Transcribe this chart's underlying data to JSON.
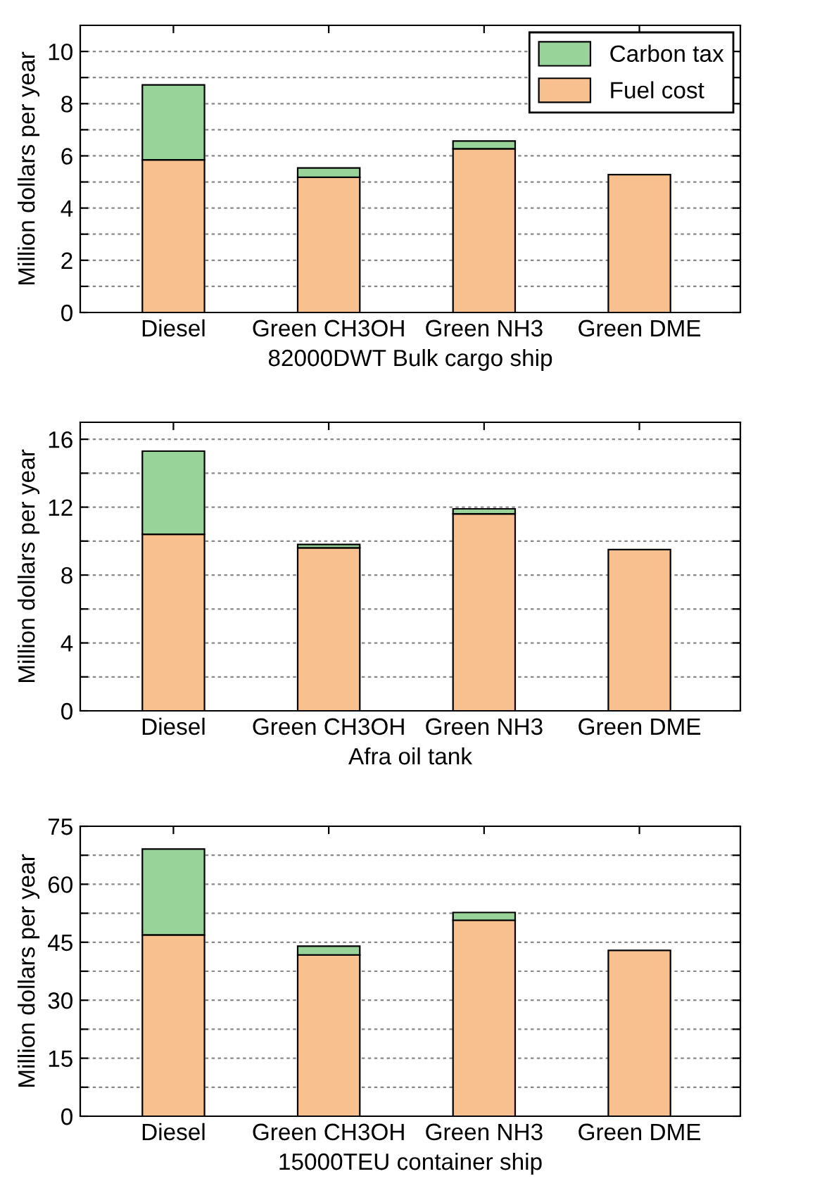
{
  "chart_data": [
    {
      "type": "bar",
      "stacked": true,
      "xlabel": "82000DWT Bulk cargo ship",
      "ylabel": "Million dollars per year",
      "categories": [
        "Diesel",
        "Green CH3OH",
        "Green NH3",
        "Green DME"
      ],
      "series": [
        {
          "name": "Fuel cost",
          "color": "#f9c08f",
          "values": [
            5.85,
            5.18,
            6.27,
            5.28
          ]
        },
        {
          "name": "Carbon tax",
          "color": "#98d49a",
          "values": [
            2.87,
            0.36,
            0.3,
            null
          ]
        }
      ],
      "ylim": [
        0,
        11
      ],
      "yticks": [
        0,
        {
          "value": 1,
          "label": null
        },
        2,
        {
          "value": 3,
          "label": null
        },
        4,
        {
          "value": 5,
          "label": null
        },
        6,
        {
          "value": 7,
          "label": null
        },
        8,
        {
          "value": 9,
          "label": null
        },
        10
      ],
      "grid": "y",
      "legend": "top right"
    },
    {
      "type": "bar",
      "stacked": true,
      "xlabel": "Afra oil tank",
      "ylabel": "Million dollars per year",
      "categories": [
        "Diesel",
        "Green CH3OH",
        "Green NH3",
        "Green DME"
      ],
      "series": [
        {
          "color": "#f9c08f",
          "values": [
            10.4,
            9.6,
            11.6,
            9.5
          ]
        },
        {
          "color": "#98d49a",
          "values": [
            4.9,
            0.2,
            0.3,
            null
          ]
        }
      ],
      "ylim": [
        0,
        17
      ],
      "yticks": [
        0,
        {
          "value": 2,
          "label": null
        },
        4,
        {
          "value": 6,
          "label": null
        },
        8,
        {
          "value": 10,
          "label": null
        },
        12,
        {
          "value": 14,
          "label": null
        },
        16
      ],
      "grid": "y"
    },
    {
      "type": "bar",
      "stacked": true,
      "xlabel": "15000TEU container ship",
      "ylabel": "Million dollars per year",
      "categories": [
        "Diesel",
        "Green CH3OH",
        "Green NH3",
        "Green DME"
      ],
      "series": [
        {
          "color": "#f9c08f",
          "values": [
            46.9,
            41.7,
            50.7,
            42.9
          ]
        },
        {
          "color": "#98d49a",
          "values": [
            22.2,
            2.3,
            2.0,
            null
          ]
        }
      ],
      "ylim": [
        0,
        75
      ],
      "yticks": [
        0,
        {
          "value": 7.5,
          "label": null
        },
        15,
        {
          "value": 22.5,
          "label": null
        },
        30,
        {
          "value": 37.5,
          "label": null
        },
        45,
        {
          "value": 52.5,
          "label": null
        },
        60,
        {
          "value": 67.5,
          "label": null
        },
        75
      ],
      "grid": "y"
    }
  ]
}
